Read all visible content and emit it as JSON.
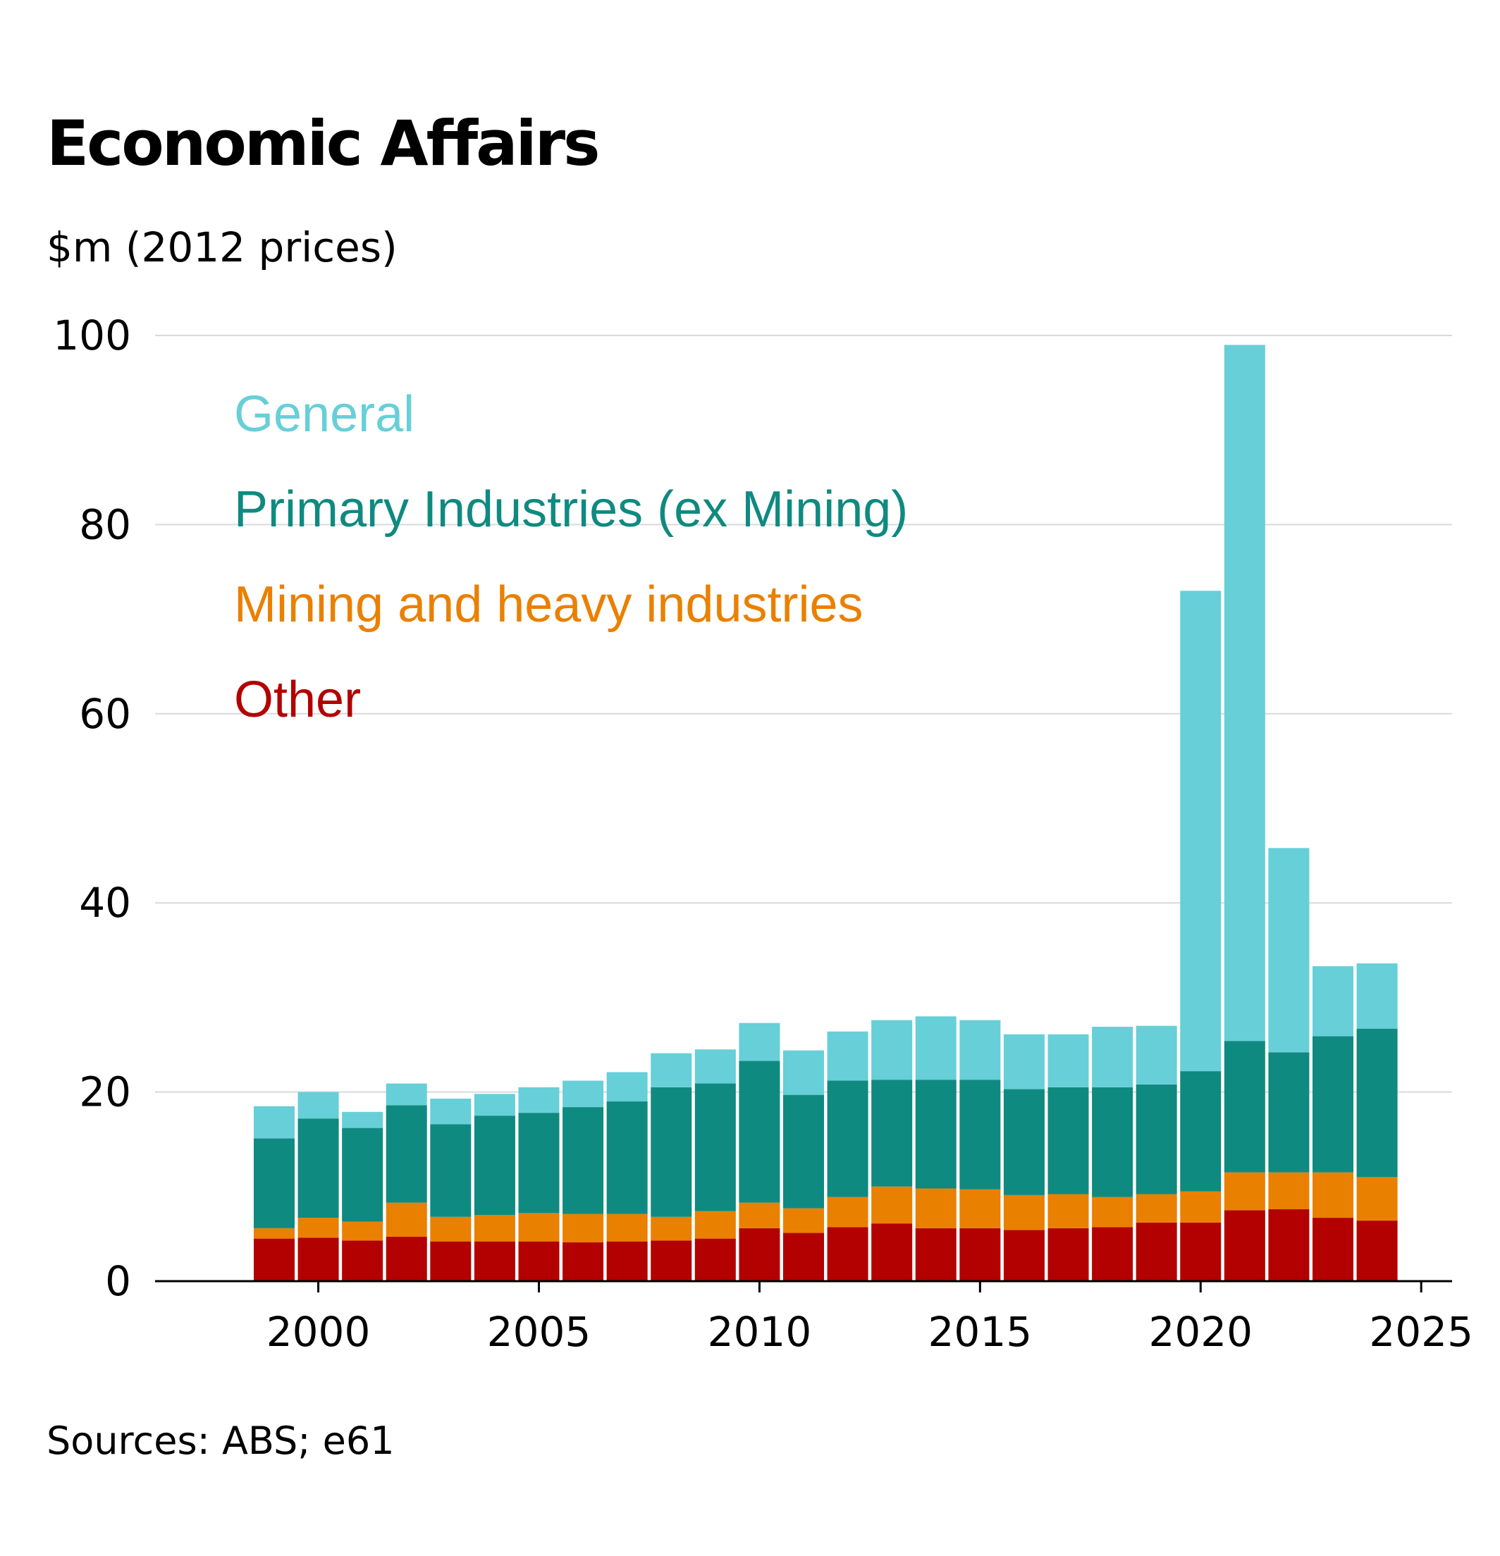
{
  "title": "Economic Affairs",
  "subtitle": "$m (2012 prices)",
  "source": "Sources: ABS; e61",
  "chart_data": {
    "type": "bar",
    "stacked": true,
    "x": [
      1999,
      2000,
      2001,
      2002,
      2003,
      2004,
      2005,
      2006,
      2007,
      2008,
      2009,
      2010,
      2011,
      2012,
      2013,
      2014,
      2015,
      2016,
      2017,
      2018,
      2019,
      2020,
      2021,
      2022,
      2023,
      2024
    ],
    "series": [
      {
        "name": "Other",
        "color": "#b30000",
        "values": [
          4.5,
          4.6,
          4.3,
          4.7,
          4.2,
          4.2,
          4.2,
          4.1,
          4.2,
          4.3,
          4.5,
          5.6,
          5.1,
          5.7,
          6.1,
          5.6,
          5.6,
          5.4,
          5.6,
          5.7,
          6.2,
          6.2,
          7.5,
          7.6,
          6.7,
          6.4
        ]
      },
      {
        "name": "Mining and heavy industries",
        "color": "#ea8000",
        "values": [
          1.1,
          2.1,
          2.0,
          3.6,
          2.6,
          2.8,
          3.0,
          3.0,
          2.9,
          2.5,
          2.9,
          2.7,
          2.6,
          3.2,
          3.9,
          4.2,
          4.1,
          3.7,
          3.6,
          3.2,
          3.0,
          3.3,
          4.0,
          3.9,
          4.8,
          4.6
        ]
      },
      {
        "name": "Primary Industries (ex Mining)",
        "color": "#0f8a80",
        "values": [
          9.5,
          10.5,
          9.9,
          10.3,
          9.8,
          10.5,
          10.6,
          11.3,
          11.9,
          13.7,
          13.5,
          15.0,
          12.0,
          12.3,
          11.3,
          11.5,
          11.6,
          11.2,
          11.3,
          11.6,
          11.6,
          12.7,
          13.9,
          12.7,
          14.4,
          15.7
        ]
      },
      {
        "name": "General",
        "color": "#67cfd8",
        "values": [
          3.4,
          2.8,
          1.7,
          2.3,
          2.7,
          2.3,
          2.7,
          2.8,
          3.1,
          3.6,
          3.6,
          4.0,
          4.7,
          5.2,
          6.3,
          6.7,
          6.3,
          5.8,
          5.6,
          6.4,
          6.2,
          50.8,
          73.6,
          21.6,
          7.4,
          6.9
        ]
      }
    ],
    "legend_order": [
      "General",
      "Primary Industries (ex Mining)",
      "Mining and heavy industries",
      "Other"
    ],
    "legend_placement": "top-left inside plot",
    "xlabel": "",
    "ylabel": "$m (2012 prices)",
    "ylim": [
      0,
      100
    ],
    "yticks": [
      0,
      20,
      40,
      60,
      80,
      100
    ],
    "xlim": [
      1996.3,
      2025.7
    ],
    "xticks": [
      2000,
      2005,
      2010,
      2015,
      2020,
      2025
    ],
    "grid": "horizontal",
    "colors": {
      "gridline": "#d9d9d9",
      "axis": "#000000"
    }
  }
}
